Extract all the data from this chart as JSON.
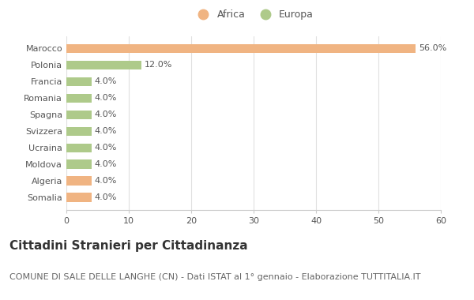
{
  "categories": [
    "Marocco",
    "Polonia",
    "Francia",
    "Romania",
    "Spagna",
    "Svizzera",
    "Ucraina",
    "Moldova",
    "Algeria",
    "Somalia"
  ],
  "values": [
    56.0,
    12.0,
    4.0,
    4.0,
    4.0,
    4.0,
    4.0,
    4.0,
    4.0,
    4.0
  ],
  "colors": [
    "#F0B482",
    "#AECA8A",
    "#AECA8A",
    "#AECA8A",
    "#AECA8A",
    "#AECA8A",
    "#AECA8A",
    "#AECA8A",
    "#F0B482",
    "#F0B482"
  ],
  "legend_labels": [
    "Africa",
    "Europa"
  ],
  "legend_colors": [
    "#F0B482",
    "#AECA8A"
  ],
  "title": "Cittadini Stranieri per Cittadinanza",
  "subtitle": "COMUNE DI SALE DELLE LANGHE (CN) - Dati ISTAT al 1° gennaio - Elaborazione TUTTITALIA.IT",
  "xlim": [
    0,
    60
  ],
  "xticks": [
    0,
    10,
    20,
    30,
    40,
    50,
    60
  ],
  "background_color": "#ffffff",
  "bar_height": 0.55,
  "title_fontsize": 11,
  "subtitle_fontsize": 8,
  "label_fontsize": 8,
  "tick_fontsize": 8,
  "legend_fontsize": 9
}
